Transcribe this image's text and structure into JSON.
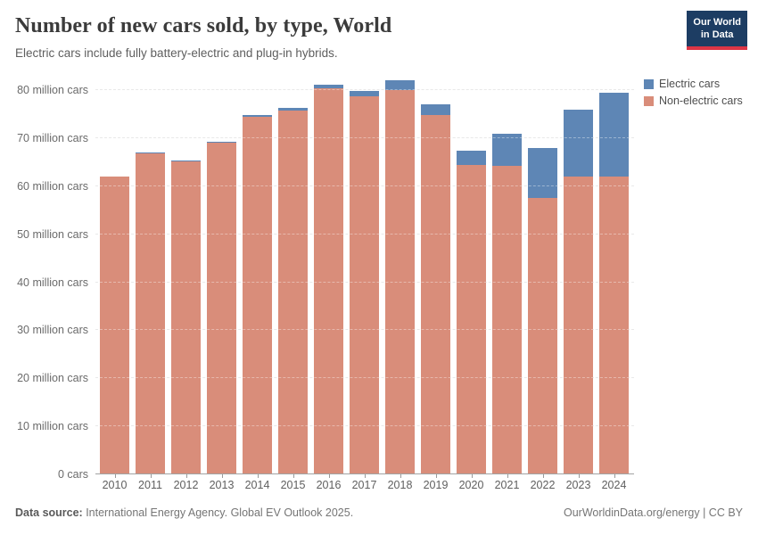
{
  "header": {
    "title": "Number of new cars sold, by type, World",
    "subtitle": "Electric cars include fully battery-electric and plug-in hybrids.",
    "logo": {
      "line1": "Our World",
      "line2": "in Data",
      "bg_color": "#1d3d63",
      "accent_color": "#dc3545"
    }
  },
  "legend": [
    {
      "label": "Electric cars",
      "color": "#5e86b5"
    },
    {
      "label": "Non-electric cars",
      "color": "#d98d7a"
    }
  ],
  "chart_data": {
    "type": "bar",
    "stacked": true,
    "title": "Number of new cars sold, by type, World",
    "categories": [
      "2010",
      "2011",
      "2012",
      "2013",
      "2014",
      "2015",
      "2016",
      "2017",
      "2018",
      "2019",
      "2020",
      "2021",
      "2022",
      "2023",
      "2024"
    ],
    "series": [
      {
        "name": "Non-electric cars",
        "color": "#d98d7a",
        "values": [
          62.0,
          67.0,
          65.3,
          69.0,
          74.5,
          75.7,
          80.4,
          78.7,
          80.0,
          74.9,
          64.4,
          64.3,
          57.5,
          62.1,
          62.0
        ]
      },
      {
        "name": "Electric cars",
        "color": "#5e86b5",
        "values": [
          0.01,
          0.05,
          0.12,
          0.2,
          0.32,
          0.55,
          0.75,
          1.2,
          2.0,
          2.1,
          3.0,
          6.6,
          10.5,
          13.9,
          17.5
        ]
      }
    ],
    "xlabel": "",
    "ylabel": "",
    "ylim": [
      0,
      83
    ],
    "yticks": [
      0,
      10,
      20,
      30,
      40,
      50,
      60,
      70,
      80
    ],
    "ytick_labels": [
      "0 cars",
      "10 million cars",
      "20 million cars",
      "30 million cars",
      "40 million cars",
      "50 million cars",
      "60 million cars",
      "70 million cars",
      "80 million cars"
    ],
    "grid": "horizontal-dashed",
    "legend_position": "right"
  },
  "footer": {
    "source_label": "Data source:",
    "source_text": " International Energy Agency. Global EV Outlook 2025.",
    "right_text": "OurWorldinData.org/energy | CC BY"
  }
}
